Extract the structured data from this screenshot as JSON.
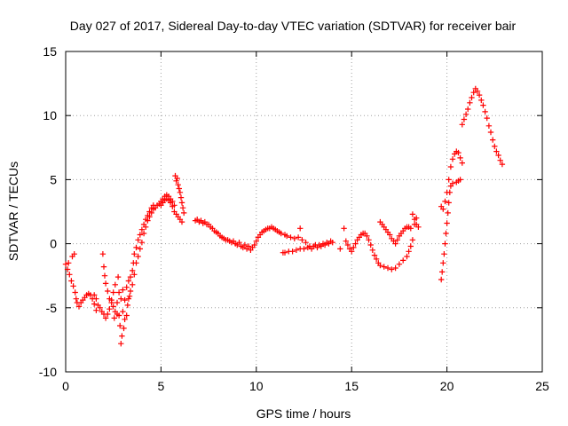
{
  "chart_data": {
    "type": "scatter",
    "title": "Day 027 of 2017, Sidereal Day-to-day VTEC variation (SDTVAR) for receiver bair",
    "xlabel": "GPS time / hours",
    "ylabel": "SDTVAR / TECUs",
    "xlim": [
      0,
      25
    ],
    "ylim": [
      -10,
      15
    ],
    "xticks": [
      0,
      5,
      10,
      15,
      20,
      25
    ],
    "yticks": [
      -10,
      -5,
      0,
      5,
      10,
      15
    ],
    "grid": true,
    "marker": "+",
    "series": [
      {
        "color": "#ff0000",
        "points": [
          [
            0.0,
            -1.6
          ],
          [
            0.1,
            -2.0
          ],
          [
            0.15,
            -1.5
          ],
          [
            0.2,
            -2.4
          ],
          [
            0.3,
            -2.9
          ],
          [
            0.35,
            -1.0
          ],
          [
            0.4,
            -3.3
          ],
          [
            0.45,
            -0.8
          ],
          [
            0.5,
            -3.8
          ],
          [
            0.55,
            -4.3
          ],
          [
            0.6,
            -4.6
          ],
          [
            0.7,
            -4.9
          ],
          [
            0.8,
            -4.6
          ],
          [
            0.9,
            -4.4
          ],
          [
            1.0,
            -4.2
          ],
          [
            1.1,
            -4.0
          ],
          [
            1.2,
            -3.9
          ],
          [
            1.3,
            -4.0
          ],
          [
            1.4,
            -4.3
          ],
          [
            1.5,
            -4.7
          ],
          [
            1.5,
            -4.0
          ],
          [
            1.6,
            -5.2
          ],
          [
            1.6,
            -4.3
          ],
          [
            1.7,
            -4.8
          ],
          [
            1.8,
            -5.0
          ],
          [
            1.9,
            -5.3
          ],
          [
            1.95,
            -0.8
          ],
          [
            2.0,
            -1.8
          ],
          [
            2.0,
            -5.5
          ],
          [
            2.05,
            -2.5
          ],
          [
            2.1,
            -3.1
          ],
          [
            2.1,
            -5.8
          ],
          [
            2.2,
            -3.7
          ],
          [
            2.2,
            -5.5
          ],
          [
            2.3,
            -4.3
          ],
          [
            2.3,
            -5.1
          ],
          [
            2.4,
            -4.6
          ],
          [
            2.4,
            -4.4
          ],
          [
            2.5,
            -4.9
          ],
          [
            2.5,
            -3.8
          ],
          [
            2.55,
            -5.8
          ],
          [
            2.6,
            -5.3
          ],
          [
            2.6,
            -3.2
          ],
          [
            2.7,
            -5.5
          ],
          [
            2.7,
            -4.6
          ],
          [
            2.75,
            -2.6
          ],
          [
            2.8,
            -5.6
          ],
          [
            2.8,
            -3.8
          ],
          [
            2.85,
            -6.4
          ],
          [
            2.9,
            -7.8
          ],
          [
            2.9,
            -4.3
          ],
          [
            2.95,
            -7.2
          ],
          [
            3.0,
            -5.3
          ],
          [
            3.0,
            -3.6
          ],
          [
            3.05,
            -6.6
          ],
          [
            3.1,
            -5.9
          ],
          [
            3.1,
            -4.4
          ],
          [
            3.2,
            -5.6
          ],
          [
            3.2,
            -3.4
          ],
          [
            3.25,
            -4.8
          ],
          [
            3.3,
            -4.3
          ],
          [
            3.3,
            -2.9
          ],
          [
            3.35,
            -4.1
          ],
          [
            3.4,
            -2.6
          ],
          [
            3.4,
            -3.7
          ],
          [
            3.5,
            -2.1
          ],
          [
            3.5,
            -3.2
          ],
          [
            3.55,
            -1.5
          ],
          [
            3.6,
            -2.4
          ],
          [
            3.6,
            -0.8
          ],
          [
            3.7,
            -1.5
          ],
          [
            3.7,
            -0.3
          ],
          [
            3.8,
            -1.0
          ],
          [
            3.8,
            0.3
          ],
          [
            3.9,
            -0.4
          ],
          [
            3.9,
            0.7
          ],
          [
            4.0,
            0.1
          ],
          [
            4.0,
            1.1
          ],
          [
            4.1,
            0.8
          ],
          [
            4.1,
            1.5
          ],
          [
            4.2,
            1.3
          ],
          [
            4.2,
            1.9
          ],
          [
            4.3,
            1.8
          ],
          [
            4.3,
            2.2
          ],
          [
            4.4,
            2.1
          ],
          [
            4.4,
            2.5
          ],
          [
            4.5,
            2.4
          ],
          [
            4.5,
            2.8
          ],
          [
            4.6,
            2.7
          ],
          [
            4.6,
            3.0
          ],
          [
            4.7,
            2.8
          ],
          [
            4.8,
            3.0
          ],
          [
            4.9,
            3.1
          ],
          [
            5.0,
            3.0
          ],
          [
            5.0,
            3.3
          ],
          [
            5.1,
            3.2
          ],
          [
            5.1,
            3.5
          ],
          [
            5.2,
            3.4
          ],
          [
            5.2,
            3.7
          ],
          [
            5.3,
            3.5
          ],
          [
            5.3,
            3.8
          ],
          [
            5.4,
            3.4
          ],
          [
            5.4,
            3.7
          ],
          [
            5.5,
            3.2
          ],
          [
            5.5,
            3.5
          ],
          [
            5.6,
            2.9
          ],
          [
            5.6,
            3.3
          ],
          [
            5.7,
            2.5
          ],
          [
            5.7,
            3.0
          ],
          [
            5.75,
            5.3
          ],
          [
            5.8,
            2.3
          ],
          [
            5.8,
            4.9
          ],
          [
            5.85,
            5.1
          ],
          [
            5.9,
            2.1
          ],
          [
            5.9,
            4.6
          ],
          [
            5.95,
            4.3
          ],
          [
            6.0,
            1.9
          ],
          [
            6.0,
            4.0
          ],
          [
            6.05,
            3.6
          ],
          [
            6.1,
            1.7
          ],
          [
            6.1,
            3.2
          ],
          [
            6.15,
            2.8
          ],
          [
            6.2,
            2.4
          ],
          [
            6.8,
            1.8
          ],
          [
            6.9,
            1.9
          ],
          [
            7.0,
            1.7
          ],
          [
            7.1,
            1.8
          ],
          [
            7.2,
            1.6
          ],
          [
            7.3,
            1.7
          ],
          [
            7.4,
            1.5
          ],
          [
            7.5,
            1.5
          ],
          [
            7.6,
            1.3
          ],
          [
            7.7,
            1.2
          ],
          [
            7.8,
            1.0
          ],
          [
            7.9,
            0.9
          ],
          [
            8.0,
            0.8
          ],
          [
            8.1,
            0.6
          ],
          [
            8.2,
            0.5
          ],
          [
            8.3,
            0.4
          ],
          [
            8.4,
            0.3
          ],
          [
            8.5,
            0.3
          ],
          [
            8.6,
            0.2
          ],
          [
            8.7,
            0.1
          ],
          [
            8.8,
            0.2
          ],
          [
            8.9,
            0.0
          ],
          [
            9.0,
            -0.1
          ],
          [
            9.1,
            0.1
          ],
          [
            9.2,
            -0.2
          ],
          [
            9.3,
            -0.3
          ],
          [
            9.4,
            -0.1
          ],
          [
            9.5,
            -0.4
          ],
          [
            9.6,
            -0.2
          ],
          [
            9.7,
            -0.5
          ],
          [
            9.8,
            -0.3
          ],
          [
            9.9,
            -0.1
          ],
          [
            10.0,
            0.2
          ],
          [
            10.1,
            0.5
          ],
          [
            10.2,
            0.7
          ],
          [
            10.3,
            0.9
          ],
          [
            10.4,
            1.0
          ],
          [
            10.5,
            1.1
          ],
          [
            10.6,
            1.2
          ],
          [
            10.7,
            1.2
          ],
          [
            10.8,
            1.3
          ],
          [
            10.9,
            1.2
          ],
          [
            11.0,
            1.1
          ],
          [
            11.1,
            1.0
          ],
          [
            11.2,
            0.9
          ],
          [
            11.3,
            0.8
          ],
          [
            11.4,
            -0.7
          ],
          [
            11.5,
            0.7
          ],
          [
            11.5,
            -0.7
          ],
          [
            11.6,
            0.6
          ],
          [
            11.7,
            -0.6
          ],
          [
            11.8,
            0.5
          ],
          [
            11.9,
            -0.6
          ],
          [
            12.0,
            0.4
          ],
          [
            12.1,
            -0.5
          ],
          [
            12.2,
            0.5
          ],
          [
            12.3,
            1.2
          ],
          [
            12.3,
            -0.4
          ],
          [
            12.4,
            0.3
          ],
          [
            12.5,
            -0.4
          ],
          [
            12.6,
            0.1
          ],
          [
            12.7,
            -0.3
          ],
          [
            12.8,
            -0.2
          ],
          [
            12.9,
            -0.4
          ],
          [
            13.0,
            -0.2
          ],
          [
            13.1,
            -0.1
          ],
          [
            13.2,
            -0.3
          ],
          [
            13.3,
            -0.1
          ],
          [
            13.4,
            -0.2
          ],
          [
            13.5,
            0.0
          ],
          [
            13.6,
            -0.1
          ],
          [
            13.7,
            0.1
          ],
          [
            13.8,
            0.0
          ],
          [
            13.9,
            0.2
          ],
          [
            14.0,
            0.1
          ],
          [
            14.4,
            -0.4
          ],
          [
            14.6,
            1.2
          ],
          [
            14.7,
            0.2
          ],
          [
            14.8,
            -0.1
          ],
          [
            14.9,
            -0.4
          ],
          [
            15.0,
            -0.6
          ],
          [
            15.1,
            -0.3
          ],
          [
            15.2,
            0.0
          ],
          [
            15.3,
            0.3
          ],
          [
            15.4,
            0.5
          ],
          [
            15.5,
            0.7
          ],
          [
            15.6,
            0.8
          ],
          [
            15.7,
            0.8
          ],
          [
            15.8,
            0.6
          ],
          [
            15.9,
            0.3
          ],
          [
            16.0,
            -0.1
          ],
          [
            16.1,
            -0.5
          ],
          [
            16.2,
            -0.9
          ],
          [
            16.3,
            -1.2
          ],
          [
            16.4,
            -1.5
          ],
          [
            16.5,
            -1.7
          ],
          [
            16.5,
            1.7
          ],
          [
            16.6,
            1.5
          ],
          [
            16.7,
            -1.8
          ],
          [
            16.7,
            1.3
          ],
          [
            16.8,
            1.1
          ],
          [
            16.9,
            -1.9
          ],
          [
            16.9,
            0.9
          ],
          [
            17.0,
            0.7
          ],
          [
            17.1,
            -2.0
          ],
          [
            17.1,
            0.4
          ],
          [
            17.2,
            0.2
          ],
          [
            17.3,
            -1.9
          ],
          [
            17.3,
            0.0
          ],
          [
            17.4,
            0.3
          ],
          [
            17.5,
            -1.6
          ],
          [
            17.5,
            0.6
          ],
          [
            17.6,
            0.8
          ],
          [
            17.7,
            -1.3
          ],
          [
            17.7,
            1.0
          ],
          [
            17.8,
            1.2
          ],
          [
            17.9,
            -1.0
          ],
          [
            17.9,
            1.3
          ],
          [
            18.0,
            -0.6
          ],
          [
            18.0,
            1.3
          ],
          [
            18.1,
            -0.2
          ],
          [
            18.1,
            1.2
          ],
          [
            18.2,
            0.3
          ],
          [
            18.2,
            2.3
          ],
          [
            18.3,
            1.9
          ],
          [
            18.3,
            1.5
          ],
          [
            18.4,
            1.5
          ],
          [
            18.4,
            2.0
          ],
          [
            18.5,
            1.3
          ],
          [
            19.7,
            -2.8
          ],
          [
            19.7,
            2.9
          ],
          [
            19.75,
            -2.2
          ],
          [
            19.8,
            -1.5
          ],
          [
            19.8,
            2.7
          ],
          [
            19.85,
            -0.8
          ],
          [
            19.9,
            0.0
          ],
          [
            19.9,
            3.3
          ],
          [
            19.95,
            0.8
          ],
          [
            20.0,
            1.6
          ],
          [
            20.0,
            4.0
          ],
          [
            20.05,
            2.4
          ],
          [
            20.1,
            3.2
          ],
          [
            20.1,
            5.0
          ],
          [
            20.15,
            4.0
          ],
          [
            20.2,
            6.0
          ],
          [
            20.2,
            4.5
          ],
          [
            20.3,
            6.6
          ],
          [
            20.3,
            4.7
          ],
          [
            20.4,
            7.0
          ],
          [
            20.5,
            7.2
          ],
          [
            20.5,
            4.8
          ],
          [
            20.6,
            7.1
          ],
          [
            20.6,
            4.9
          ],
          [
            20.7,
            6.7
          ],
          [
            20.7,
            5.0
          ],
          [
            20.8,
            6.3
          ],
          [
            20.8,
            9.3
          ],
          [
            20.9,
            9.7
          ],
          [
            21.0,
            10.1
          ],
          [
            21.1,
            10.5
          ],
          [
            21.2,
            11.0
          ],
          [
            21.3,
            11.4
          ],
          [
            21.4,
            11.8
          ],
          [
            21.5,
            12.1
          ],
          [
            21.6,
            11.9
          ],
          [
            21.7,
            11.6
          ],
          [
            21.8,
            11.2
          ],
          [
            21.9,
            10.8
          ],
          [
            22.0,
            10.3
          ],
          [
            22.1,
            9.8
          ],
          [
            22.2,
            9.2
          ],
          [
            22.3,
            8.7
          ],
          [
            22.4,
            8.1
          ],
          [
            22.5,
            7.6
          ],
          [
            22.6,
            7.2
          ],
          [
            22.7,
            6.9
          ],
          [
            22.8,
            6.5
          ],
          [
            22.9,
            6.2
          ]
        ]
      }
    ]
  }
}
